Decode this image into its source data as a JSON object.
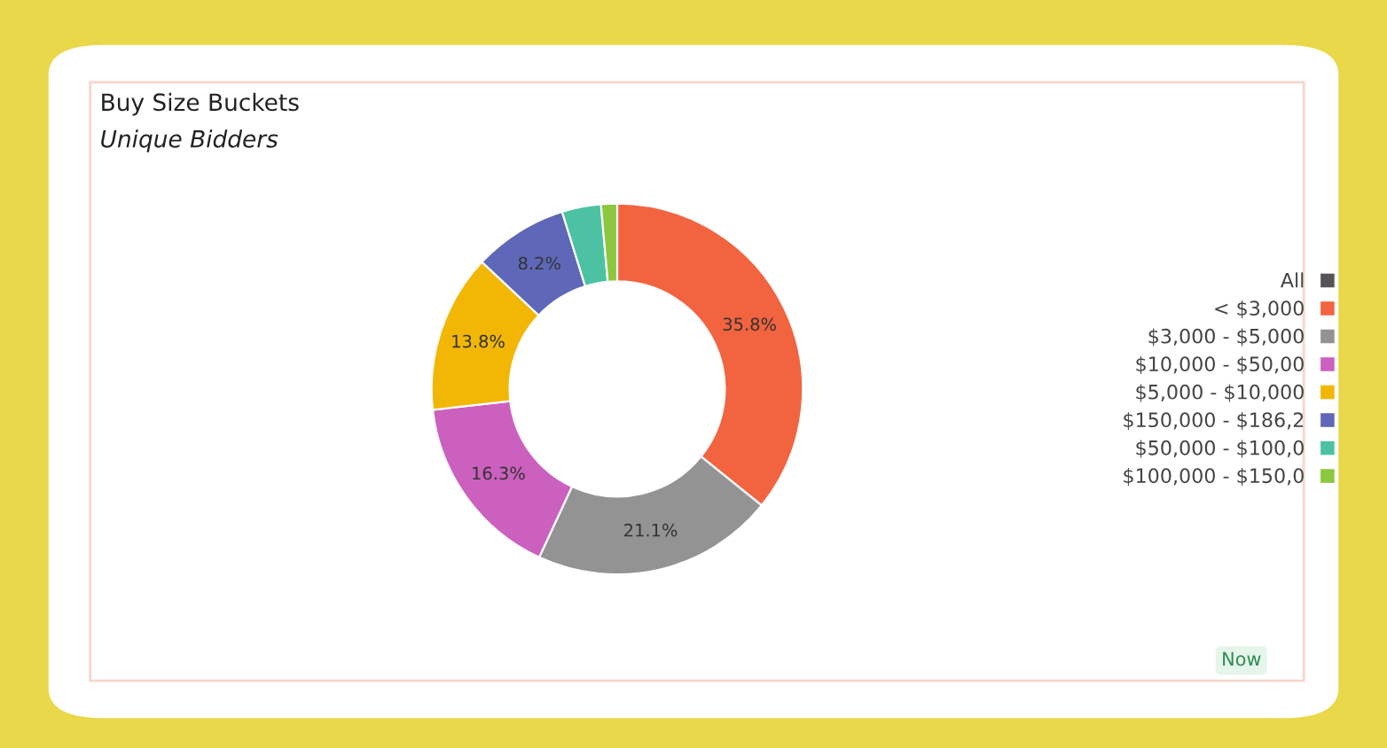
{
  "chart_data": {
    "type": "donut",
    "title": "Buy Size Buckets",
    "subtitle": "Unique Bidders",
    "categories": [
      "All",
      "< $3,000",
      "$3,000 - $5,000",
      "$10,000 - $50,00",
      "$5,000 - $10,000",
      "$150,000 - $186,2",
      "$50,000 - $100,0",
      "$100,000 - $150,0"
    ],
    "values": [
      0,
      35.8,
      21.1,
      16.3,
      13.8,
      8.2,
      3.4,
      1.4
    ],
    "colors": [
      "#555555",
      "#f26340",
      "#939393",
      "#cc60bf",
      "#f2b705",
      "#5e67b8",
      "#4cc2a2",
      "#8dc63f"
    ],
    "value_labels": [
      null,
      "35.8%",
      "21.1%",
      "16.3%",
      "13.8%",
      "8.2%",
      null,
      null
    ],
    "legend": "right",
    "annotations": [
      "Now"
    ]
  }
}
